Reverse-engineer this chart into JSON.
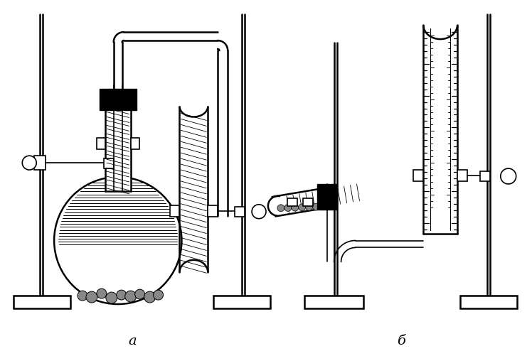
{
  "background_color": "#ffffff",
  "line_color": "#000000",
  "label_a": "а",
  "label_b": "б",
  "figsize": [
    7.48,
    5.02
  ],
  "dpi": 100
}
